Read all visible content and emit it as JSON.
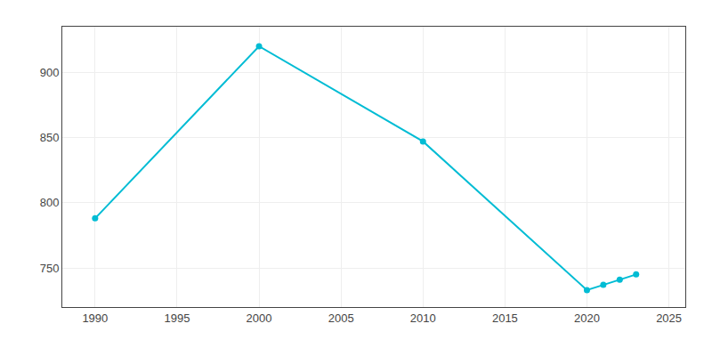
{
  "chart_data": {
    "type": "line",
    "x": [
      1990,
      2000,
      2010,
      2020,
      2021,
      2022,
      2023
    ],
    "values": [
      788,
      920,
      847,
      733,
      737,
      741,
      745
    ],
    "color": "#00bcd4",
    "marker": "circle",
    "xlim": [
      1988,
      2026
    ],
    "xticks": [
      1990,
      1995,
      2000,
      2005,
      2010,
      2015,
      2020,
      2025
    ],
    "ylim": [
      720,
      935
    ],
    "yticks": [
      750,
      800,
      850,
      900
    ],
    "grid": true
  }
}
